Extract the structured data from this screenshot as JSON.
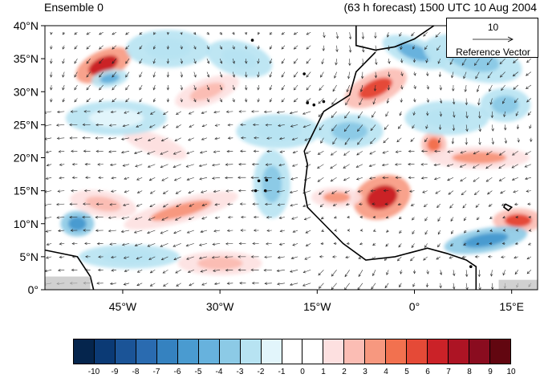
{
  "title_left": "Ensemble 0",
  "title_right": "(63 h forecast) 1500 UTC 10 Aug 2004",
  "reference": {
    "value": "10",
    "label": "Reference Vector"
  },
  "lat_labels": [
    "40°N",
    "35°N",
    "30°N",
    "25°N",
    "20°N",
    "15°N",
    "10°N",
    "5°N",
    "0°"
  ],
  "lon_labels": [
    "45°W",
    "30°W",
    "15°W",
    "0°",
    "15°E"
  ],
  "colorbar": {
    "labels": [
      "-10",
      "-9",
      "-8",
      "-7",
      "-6",
      "-5",
      "-4",
      "-3",
      "-2",
      "-1",
      "0",
      "1",
      "2",
      "3",
      "4",
      "5",
      "6",
      "7",
      "8",
      "9",
      "10"
    ],
    "colors": [
      "#05254d",
      "#0b3a75",
      "#1b5497",
      "#2a6bb0",
      "#3582c0",
      "#4a9bd0",
      "#67b2dd",
      "#8ccae6",
      "#b7e3f2",
      "#e2f5fb",
      "#ffffff",
      "#ffffff",
      "#fde0e0",
      "#fbbdb4",
      "#f7987f",
      "#f2714f",
      "#e54a37",
      "#cb2228",
      "#ad1424",
      "#8a0c1f",
      "#620610"
    ]
  },
  "map": {
    "extent": {
      "lon_min": -57,
      "lon_max": 19,
      "lat_min": 0,
      "lat_max": 40
    },
    "lat_ticks": [
      40,
      35,
      30,
      25,
      20,
      15,
      10,
      5,
      0
    ],
    "lon_ticks": [
      -45,
      -30,
      -15,
      0,
      15
    ],
    "anomalies": [
      {
        "lon": -48,
        "lat": 34,
        "rx": 3.5,
        "ry": 1.7,
        "value": 7,
        "rot": -25
      },
      {
        "lon": -47,
        "lat": 32,
        "rx": 2.2,
        "ry": 1.0,
        "value": -4,
        "rot": -10
      },
      {
        "lon": -38,
        "lat": 36.5,
        "rx": 5,
        "ry": 2.2,
        "value": -2,
        "rot": 0
      },
      {
        "lon": -32,
        "lat": 30,
        "rx": 4,
        "ry": 1.5,
        "value": 3,
        "rot": -20
      },
      {
        "lon": -27,
        "lat": 35,
        "rx": 4,
        "ry": 2,
        "value": -2,
        "rot": 15
      },
      {
        "lon": -21,
        "lat": 24,
        "rx": 5,
        "ry": 2,
        "value": -2,
        "rot": 0
      },
      {
        "lon": -22,
        "lat": 16,
        "rx": 2.2,
        "ry": 4,
        "value": -3,
        "rot": 0
      },
      {
        "lon": -36,
        "lat": 12,
        "rx": 7,
        "ry": 1.4,
        "value": 4,
        "rot": -15
      },
      {
        "lon": -48,
        "lat": 13,
        "rx": 4,
        "ry": 1.5,
        "value": 3,
        "rot": 10
      },
      {
        "lon": -52,
        "lat": 10,
        "rx": 2,
        "ry": 1.5,
        "value": -5,
        "rot": 0
      },
      {
        "lon": -44,
        "lat": 5,
        "rx": 6,
        "ry": 1.4,
        "value": -2,
        "rot": 0
      },
      {
        "lon": -30,
        "lat": 4,
        "rx": 5,
        "ry": 1.4,
        "value": 3,
        "rot": 0
      },
      {
        "lon": -5,
        "lat": 14,
        "rx": 3.5,
        "ry": 2.5,
        "value": 7,
        "rot": -20
      },
      {
        "lon": -12,
        "lat": 14,
        "rx": 3,
        "ry": 1.2,
        "value": 4,
        "rot": 0
      },
      {
        "lon": -6,
        "lat": 30.5,
        "rx": 4,
        "ry": 1.8,
        "value": 6,
        "rot": -25
      },
      {
        "lon": 0,
        "lat": 36,
        "rx": 4,
        "ry": 1.6,
        "value": -4,
        "rot": 20
      },
      {
        "lon": 9,
        "lat": 35,
        "rx": 6,
        "ry": 2.5,
        "value": -3,
        "rot": 15
      },
      {
        "lon": 3,
        "lat": 22,
        "rx": 1.5,
        "ry": 1.5,
        "value": 5,
        "rot": 0
      },
      {
        "lon": 10,
        "lat": 20,
        "rx": 6,
        "ry": 1.3,
        "value": 4,
        "rot": 0
      },
      {
        "lon": 16,
        "lat": 10.5,
        "rx": 3,
        "ry": 1.4,
        "value": 6,
        "rot": 0
      },
      {
        "lon": 11,
        "lat": 7.5,
        "rx": 5,
        "ry": 1.4,
        "value": -5,
        "rot": -10
      },
      {
        "lon": 5,
        "lat": 26,
        "rx": 5,
        "ry": 2,
        "value": -2,
        "rot": 0
      },
      {
        "lon": -10,
        "lat": 24,
        "rx": 4,
        "ry": 2,
        "value": -3,
        "rot": 0
      },
      {
        "lon": 14,
        "lat": 28,
        "rx": 3,
        "ry": 2,
        "value": -3,
        "rot": 0
      },
      {
        "lon": -40,
        "lat": 22,
        "rx": 4,
        "ry": 1.2,
        "value": 2,
        "rot": 20
      },
      {
        "lon": -46,
        "lat": 26,
        "rx": 6,
        "ry": 2,
        "value": -1,
        "rot": 0
      }
    ],
    "coast_africa": [
      [
        -6,
        36
      ],
      [
        -9,
        33
      ],
      [
        -10,
        29.5
      ],
      [
        -14,
        27
      ],
      [
        -17,
        21
      ],
      [
        -16.5,
        19
      ],
      [
        -17,
        15
      ],
      [
        -16.5,
        12.5
      ],
      [
        -15,
        11
      ],
      [
        -13,
        9
      ],
      [
        -11,
        7
      ],
      [
        -7.5,
        4.5
      ],
      [
        -3,
        5
      ],
      [
        2,
        6.3
      ],
      [
        5,
        5.5
      ],
      [
        8,
        4.5
      ],
      [
        9.5,
        3.5
      ],
      [
        9.5,
        0
      ]
    ],
    "coast_europe": [
      [
        -9,
        42
      ],
      [
        -9,
        37
      ],
      [
        -6,
        36.3
      ],
      [
        -3,
        36.8
      ],
      [
        0,
        38
      ],
      [
        3,
        40
      ],
      [
        5,
        42
      ]
    ],
    "coast_southamerica": [
      [
        -57,
        6
      ],
      [
        -52,
        5
      ],
      [
        -50,
        2
      ],
      [
        -49.5,
        0
      ]
    ],
    "lake": [
      [
        14,
        13
      ],
      [
        15,
        12.5
      ],
      [
        14.5,
        12
      ],
      [
        13.8,
        12.5
      ]
    ],
    "islands": [
      [
        -16.5,
        28.3
      ],
      [
        -15.5,
        28
      ],
      [
        -14,
        28.5
      ],
      [
        -17,
        32.7
      ],
      [
        -25,
        37.8
      ],
      [
        -24,
        16.5
      ],
      [
        -23,
        15
      ],
      [
        -24.5,
        15
      ],
      [
        -22.8,
        16.6
      ],
      [
        8.7,
        3.5
      ]
    ],
    "arrow_spacing": 2
  }
}
